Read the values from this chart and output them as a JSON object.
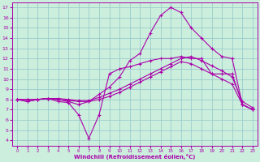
{
  "title": "",
  "xlabel": "Windchill (Refroidissement éolien,°C)",
  "ylabel": "",
  "background_color": "#cceedd",
  "line_color": "#aa00aa",
  "grid_color": "#99cccc",
  "xlim": [
    -0.5,
    23.5
  ],
  "ylim": [
    3.5,
    17.5
  ],
  "yticks": [
    4,
    5,
    6,
    7,
    8,
    9,
    10,
    11,
    12,
    13,
    14,
    15,
    16,
    17
  ],
  "xticks": [
    0,
    1,
    2,
    3,
    4,
    5,
    6,
    7,
    8,
    9,
    10,
    11,
    12,
    13,
    14,
    15,
    16,
    17,
    18,
    19,
    20,
    21,
    22,
    23
  ],
  "lines": [
    {
      "x": [
        0,
        1,
        2,
        3,
        4,
        5,
        6,
        7,
        8,
        9,
        10,
        11,
        12,
        13,
        14,
        15,
        16,
        17,
        18,
        19,
        20,
        21,
        22,
        23
      ],
      "y": [
        8.0,
        7.8,
        8.0,
        8.1,
        7.8,
        7.7,
        6.5,
        4.2,
        6.5,
        10.5,
        11.0,
        11.2,
        11.5,
        11.8,
        12.0,
        12.0,
        12.2,
        12.0,
        12.0,
        10.5,
        10.5,
        10.5,
        7.5,
        7.0
      ]
    },
    {
      "x": [
        0,
        1,
        2,
        3,
        4,
        5,
        6,
        7,
        8,
        9,
        10,
        11,
        12,
        13,
        14,
        15,
        16,
        17,
        18,
        19,
        20,
        21,
        22,
        23
      ],
      "y": [
        8.0,
        8.0,
        8.0,
        8.1,
        8.1,
        8.0,
        7.9,
        7.9,
        8.2,
        8.6,
        9.0,
        9.5,
        10.0,
        10.5,
        11.0,
        11.5,
        12.0,
        12.2,
        11.8,
        11.3,
        10.8,
        10.2,
        7.8,
        7.2
      ]
    },
    {
      "x": [
        0,
        1,
        2,
        3,
        4,
        5,
        6,
        7,
        8,
        9,
        10,
        11,
        12,
        13,
        14,
        15,
        16,
        17,
        18,
        19,
        20,
        21,
        22,
        23
      ],
      "y": [
        8.0,
        8.0,
        8.0,
        8.1,
        8.0,
        7.9,
        7.8,
        7.8,
        8.0,
        8.3,
        8.7,
        9.2,
        9.7,
        10.2,
        10.7,
        11.2,
        11.7,
        11.5,
        11.0,
        10.5,
        10.0,
        9.5,
        7.5,
        7.0
      ]
    },
    {
      "x": [
        0,
        1,
        2,
        3,
        4,
        5,
        6,
        7,
        8,
        9,
        10,
        11,
        12,
        13,
        14,
        15,
        16,
        17,
        18,
        19,
        20,
        21,
        22,
        23
      ],
      "y": [
        8.0,
        7.8,
        8.0,
        8.1,
        8.0,
        7.8,
        7.5,
        7.8,
        8.5,
        9.2,
        10.2,
        11.8,
        12.5,
        14.5,
        16.2,
        17.0,
        16.5,
        15.0,
        14.0,
        13.0,
        12.2,
        12.0,
        7.5,
        7.0
      ]
    }
  ]
}
